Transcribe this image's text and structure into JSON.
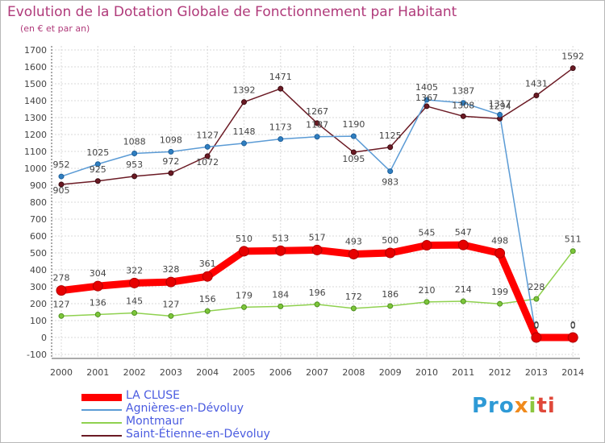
{
  "chart_data": {
    "type": "line",
    "title": "Evolution de la Dotation Globale de Fonctionnement par Habitant",
    "subtitle": "(en € et par an)",
    "x": [
      "2000",
      "2001",
      "2002",
      "2003",
      "2004",
      "2005",
      "2006",
      "2007",
      "2008",
      "2009",
      "2010",
      "2011",
      "2012",
      "2013",
      "2014"
    ],
    "yticks": [
      -100,
      0,
      100,
      200,
      300,
      400,
      500,
      600,
      700,
      800,
      900,
      1000,
      1100,
      1200,
      1300,
      1400,
      1500,
      1600,
      1700
    ],
    "ylim": [
      -100,
      1700
    ],
    "grid": true,
    "legend_position": "bottom-left",
    "series": [
      {
        "name": "LA CLUSE",
        "color": "#ff0000",
        "values": [
          278,
          304,
          322,
          328,
          361,
          510,
          513,
          517,
          493,
          500,
          545,
          547,
          498,
          0,
          0
        ],
        "labels": [
          "278",
          "304",
          "322",
          "328",
          "361",
          "510",
          "513",
          "517",
          "493",
          "500",
          "545",
          "547",
          "498",
          "0",
          "0"
        ]
      },
      {
        "name": "Agnières-en-Dévoluy",
        "color": "#5b9bd5",
        "values": [
          952,
          1025,
          1088,
          1098,
          1127,
          1148,
          1173,
          1187,
          1190,
          983,
          1405,
          1387,
          1317,
          0,
          0
        ],
        "labels": [
          "952",
          "1025",
          "1088",
          "1098",
          "1127",
          "1148",
          "1173",
          "1187",
          "1190",
          "983",
          "1405",
          "1387",
          "1317",
          "0",
          "0"
        ]
      },
      {
        "name": "Montmaur",
        "color": "#8fd14f",
        "values": [
          127,
          136,
          145,
          127,
          156,
          179,
          184,
          196,
          172,
          186,
          210,
          214,
          199,
          228,
          511
        ],
        "labels": [
          "127",
          "136",
          "145",
          "127",
          "156",
          "179",
          "184",
          "196",
          "172",
          "186",
          "210",
          "214",
          "199",
          "228",
          "511"
        ]
      },
      {
        "name": "Saint-Étienne-en-Dévoluy",
        "color": "#6b1a24",
        "values": [
          905,
          925,
          953,
          972,
          1072,
          1392,
          1471,
          1267,
          1095,
          1125,
          1367,
          1308,
          1294,
          1431,
          1592
        ],
        "labels": [
          "905",
          "925",
          "953",
          "972",
          "1072",
          "1392",
          "1471",
          "1267",
          "1095",
          "1125",
          "1367",
          "1308",
          "1294",
          "1431",
          "1592"
        ]
      }
    ]
  },
  "logo": {
    "p1": "Pro",
    "p2": "x",
    "p3": "i",
    "p4": "ti"
  }
}
